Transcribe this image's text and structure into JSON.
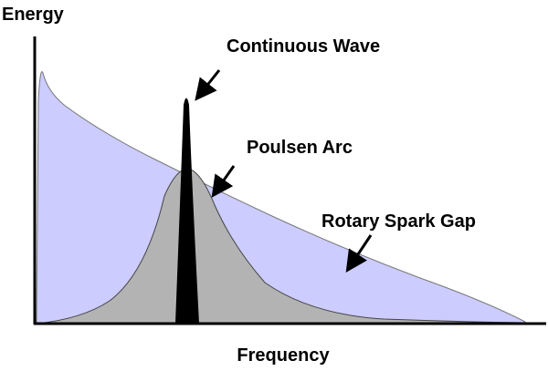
{
  "axes": {
    "y_label": "Energy",
    "x_label": "Frequency"
  },
  "curves": [
    {
      "label": "Continuous Wave"
    },
    {
      "label": "Poulsen Arc"
    },
    {
      "label": "Rotary Spark Gap"
    }
  ]
}
